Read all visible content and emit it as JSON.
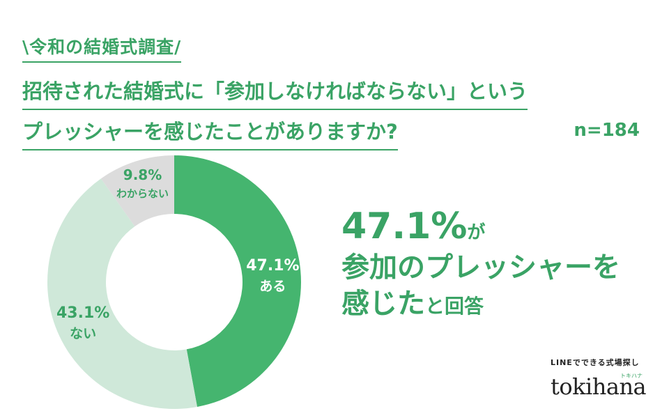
{
  "survey_tag": "\\令和の結婚式調査/",
  "question_line1": "招待された結婚式に「参加しなければならない」という",
  "question_line2": "プレッシャーを感じたことがありますか?",
  "sample_size": "n=184",
  "callout": {
    "pct": "47.1%",
    "ga": "が",
    "line2": "参加のプレッシャーを",
    "line3a": "感じた",
    "line3b": "と回答"
  },
  "logo": {
    "tagline": "LINEでできる式場探し",
    "kana": "トキハナ",
    "brand": "tokihana"
  },
  "colors": {
    "accent": "#3aa365",
    "slice_yes": "#45b56f",
    "slice_no": "#cfe8d9",
    "slice_unknown": "#dcdcdc"
  },
  "chart_data": {
    "type": "pie",
    "donut": true,
    "slices": [
      {
        "label": "ある",
        "value": 47.1,
        "value_label": "47.1%"
      },
      {
        "label": "ない",
        "value": 43.1,
        "value_label": "43.1%"
      },
      {
        "label": "わからない",
        "value": 9.8,
        "value_label": "9.8%"
      }
    ]
  }
}
